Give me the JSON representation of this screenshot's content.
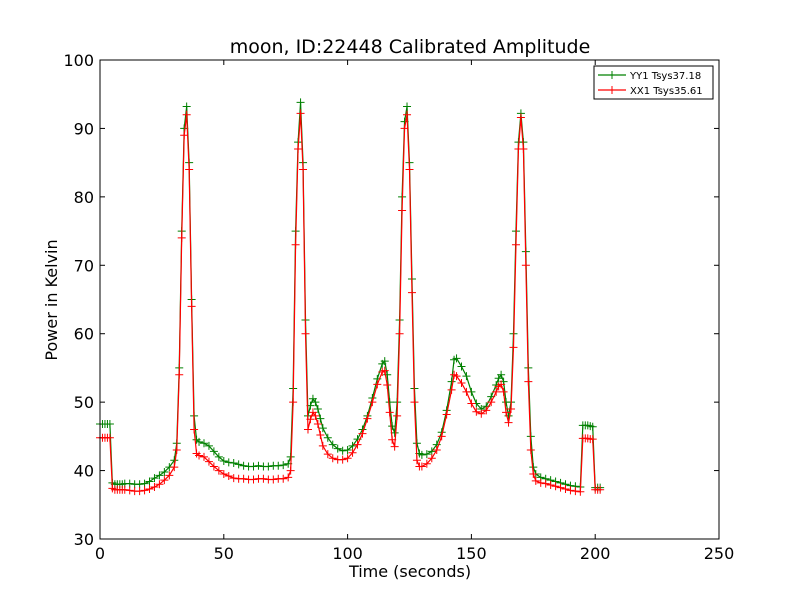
{
  "chart_data": {
    "type": "line",
    "title": "moon, ID:22448 Calibrated Amplitude",
    "xlabel": "Time (seconds)",
    "ylabel": "Power in Kelvin",
    "xlim": [
      0,
      250
    ],
    "ylim": [
      30,
      100
    ],
    "xticks": [
      "0",
      "50",
      "100",
      "150",
      "200",
      "250"
    ],
    "yticks": [
      "30",
      "40",
      "50",
      "60",
      "70",
      "80",
      "90",
      "100"
    ],
    "grid": false,
    "legend_position": "top-right",
    "colors": {
      "YY1": "#008000",
      "XX1": "#ff0000"
    },
    "series": [
      {
        "name": "YY1 Tsys37.18",
        "key": "YY1",
        "x": [
          0,
          1,
          2,
          3,
          4,
          5,
          6,
          7,
          8,
          9,
          10,
          12,
          14,
          16,
          18,
          20,
          22,
          24,
          26,
          28,
          30,
          31,
          32,
          33,
          34,
          35,
          36,
          37,
          38,
          39,
          40,
          42,
          44,
          46,
          48,
          50,
          52,
          54,
          56,
          58,
          60,
          62,
          64,
          66,
          68,
          70,
          72,
          74,
          76,
          77,
          78,
          79,
          80,
          81,
          82,
          83,
          84,
          85,
          86,
          87,
          88,
          89,
          90,
          92,
          94,
          96,
          98,
          100,
          102,
          104,
          106,
          108,
          110,
          112,
          114,
          115,
          116,
          117,
          118,
          119,
          120,
          121,
          122,
          123,
          124,
          125,
          126,
          127,
          128,
          129,
          130,
          132,
          134,
          136,
          138,
          140,
          142,
          143,
          144,
          146,
          148,
          150,
          152,
          154,
          156,
          158,
          160,
          161,
          162,
          163,
          164,
          165,
          166,
          167,
          168,
          169,
          170,
          171,
          172,
          173,
          174,
          175,
          176,
          178,
          180,
          182,
          184,
          186,
          188,
          190,
          192,
          194,
          195,
          196,
          197,
          198,
          199,
          200,
          201,
          202
        ],
        "y": [
          46.8,
          46.8,
          46.8,
          46.8,
          46.8,
          38.2,
          38.0,
          38.0,
          38.0,
          38.0,
          38.1,
          38.1,
          38.0,
          38.0,
          38.1,
          38.4,
          38.9,
          39.3,
          39.8,
          40.5,
          41.5,
          44.0,
          55.0,
          75.0,
          90.0,
          93.2,
          85.0,
          65.0,
          48.0,
          44.5,
          44.2,
          44.0,
          43.6,
          42.8,
          42.0,
          41.4,
          41.2,
          41.1,
          40.9,
          40.7,
          40.6,
          40.6,
          40.7,
          40.6,
          40.6,
          40.7,
          40.7,
          40.8,
          41.0,
          42.0,
          52.0,
          75.0,
          88.0,
          93.8,
          85.0,
          62.0,
          48.0,
          49.5,
          50.5,
          50.0,
          49.0,
          47.6,
          46.2,
          44.8,
          43.8,
          43.2,
          42.9,
          43.0,
          43.6,
          44.6,
          46.0,
          48.0,
          50.6,
          53.4,
          55.6,
          56.0,
          54.0,
          50.0,
          46.5,
          45.5,
          50.0,
          62.0,
          80.0,
          91.0,
          93.2,
          85.0,
          68.0,
          52.0,
          44.0,
          42.5,
          42.3,
          42.4,
          42.8,
          43.8,
          45.6,
          48.8,
          53.0,
          56.2,
          56.4,
          55.2,
          53.8,
          51.5,
          49.8,
          49.0,
          49.4,
          50.8,
          52.5,
          53.5,
          54.0,
          53.0,
          50.0,
          48.0,
          50.0,
          60.0,
          75.0,
          88.0,
          92.2,
          88.0,
          72.0,
          55.0,
          45.0,
          40.5,
          39.5,
          39.0,
          38.8,
          38.6,
          38.4,
          38.2,
          38.0,
          37.8,
          37.7,
          37.6,
          46.6,
          46.6,
          46.6,
          46.5,
          46.4,
          37.5,
          37.5,
          37.5
        ]
      },
      {
        "name": "XX1 Tsys35.61",
        "key": "XX1",
        "x": [
          0,
          1,
          2,
          3,
          4,
          5,
          6,
          7,
          8,
          9,
          10,
          12,
          14,
          16,
          18,
          20,
          22,
          24,
          26,
          28,
          30,
          31,
          32,
          33,
          34,
          35,
          36,
          37,
          38,
          39,
          40,
          42,
          44,
          46,
          48,
          50,
          52,
          54,
          56,
          58,
          60,
          62,
          64,
          66,
          68,
          70,
          72,
          74,
          76,
          77,
          78,
          79,
          80,
          81,
          82,
          83,
          84,
          85,
          86,
          87,
          88,
          89,
          90,
          92,
          94,
          96,
          98,
          100,
          102,
          104,
          106,
          108,
          110,
          112,
          114,
          115,
          116,
          117,
          118,
          119,
          120,
          121,
          122,
          123,
          124,
          125,
          126,
          127,
          128,
          129,
          130,
          132,
          134,
          136,
          138,
          140,
          142,
          143,
          144,
          146,
          148,
          150,
          152,
          154,
          156,
          158,
          160,
          161,
          162,
          163,
          164,
          165,
          166,
          167,
          168,
          169,
          170,
          171,
          172,
          173,
          174,
          175,
          176,
          178,
          180,
          182,
          184,
          186,
          188,
          190,
          192,
          194,
          195,
          196,
          197,
          198,
          199,
          200,
          201,
          202
        ],
        "y": [
          44.8,
          44.8,
          44.8,
          44.8,
          44.8,
          37.4,
          37.2,
          37.2,
          37.2,
          37.2,
          37.2,
          37.1,
          37.0,
          37.0,
          37.1,
          37.3,
          37.6,
          38.0,
          38.6,
          39.3,
          40.5,
          43.0,
          54.0,
          74.0,
          89.0,
          92.0,
          84.0,
          64.0,
          46.0,
          42.5,
          42.2,
          42.0,
          41.3,
          40.6,
          40.0,
          39.5,
          39.2,
          38.9,
          38.8,
          38.8,
          38.7,
          38.7,
          38.8,
          38.8,
          38.7,
          38.7,
          38.8,
          38.8,
          39.0,
          40.0,
          50.0,
          73.0,
          87.0,
          92.2,
          84.0,
          60.0,
          46.0,
          47.5,
          48.5,
          48.0,
          46.8,
          45.2,
          43.6,
          42.4,
          41.8,
          41.6,
          41.6,
          41.8,
          42.6,
          43.8,
          45.4,
          47.6,
          50.0,
          52.6,
          54.4,
          54.6,
          52.5,
          48.5,
          44.5,
          43.5,
          48.0,
          60.0,
          78.0,
          90.0,
          92.0,
          84.0,
          66.0,
          50.0,
          41.5,
          40.6,
          40.6,
          41.0,
          41.8,
          43.0,
          45.0,
          48.2,
          51.8,
          54.0,
          53.8,
          52.8,
          51.5,
          49.8,
          48.6,
          48.3,
          48.8,
          50.0,
          51.5,
          52.3,
          52.6,
          51.5,
          48.5,
          47.0,
          49.0,
          58.0,
          73.0,
          87.0,
          91.6,
          87.0,
          70.0,
          53.0,
          43.0,
          39.5,
          38.5,
          38.2,
          38.1,
          37.9,
          37.7,
          37.5,
          37.3,
          37.1,
          37.0,
          36.9,
          44.7,
          44.7,
          44.7,
          44.6,
          44.6,
          37.2,
          37.2,
          37.2
        ]
      }
    ]
  }
}
